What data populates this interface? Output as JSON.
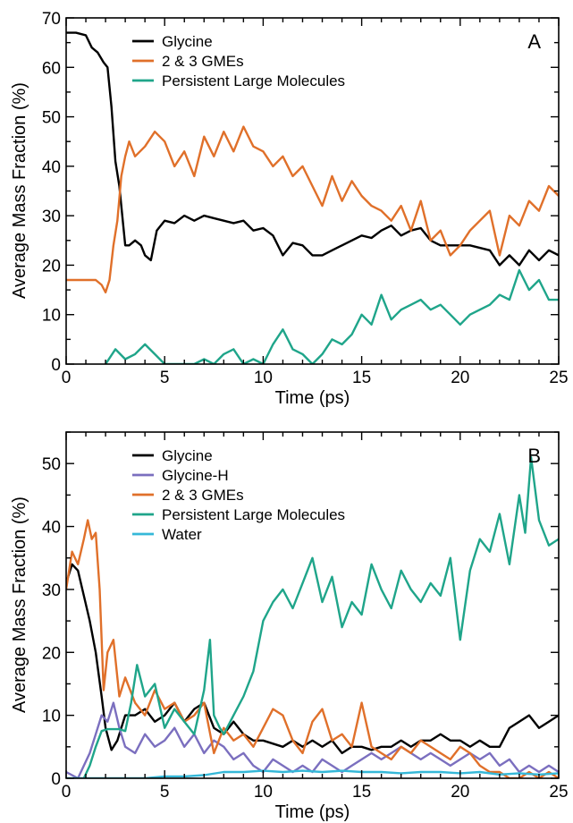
{
  "colors": {
    "glycine": "#000000",
    "glycine_h": "#7b6fbf",
    "gmes": "#e0702a",
    "persistent": "#1fa58a",
    "water": "#35b8d8"
  },
  "chart_data": [
    {
      "type": "line",
      "panel_label": "A",
      "xlabel": "Time (ps)",
      "ylabel": "Average Mass Fraction (%)",
      "xlim": [
        0,
        25
      ],
      "ylim": [
        0,
        70
      ],
      "xticks": [
        0,
        5,
        10,
        15,
        20,
        25
      ],
      "yticks": [
        0,
        10,
        20,
        30,
        40,
        50,
        60,
        70
      ],
      "grid": false,
      "legend_position": "top-left",
      "series": [
        {
          "name": "Glycine",
          "color": "#000000",
          "x": [
            0,
            0.5,
            1,
            1.3,
            1.6,
            1.9,
            2.1,
            2.3,
            2.5,
            2.7,
            2.9,
            3.0,
            3.2,
            3.5,
            3.8,
            4.0,
            4.3,
            4.6,
            5.0,
            5.5,
            6,
            6.5,
            7,
            7.5,
            8,
            8.5,
            9,
            9.5,
            10,
            10.5,
            11,
            11.5,
            12,
            12.5,
            13,
            13.5,
            14,
            14.5,
            15,
            15.5,
            16,
            16.5,
            17,
            17.5,
            18,
            18.5,
            19,
            19.5,
            20,
            20.5,
            21,
            21.5,
            22,
            22.5,
            23,
            23.5,
            24,
            24.5,
            25
          ],
          "values": [
            67,
            67,
            66.5,
            64,
            63,
            61,
            60,
            52,
            41,
            36,
            28,
            24,
            24,
            25,
            24,
            22,
            21,
            27,
            29,
            28.5,
            30,
            29,
            30,
            29.5,
            29,
            28.5,
            29,
            27,
            27.5,
            26,
            22,
            24.5,
            24,
            22,
            22,
            23,
            24,
            25,
            26,
            25.5,
            27,
            28,
            26,
            27,
            27.5,
            25,
            24,
            24,
            24,
            24,
            23.5,
            23,
            20,
            22,
            20,
            23,
            21,
            23,
            22
          ]
        },
        {
          "name": "2 & 3 GMEs",
          "color": "#e0702a",
          "x": [
            0,
            1,
            1.5,
            1.8,
            2.0,
            2.2,
            2.4,
            2.6,
            2.8,
            3.0,
            3.2,
            3.5,
            4.0,
            4.5,
            5.0,
            5.5,
            6,
            6.5,
            7,
            7.5,
            8,
            8.5,
            9,
            9.5,
            10,
            10.5,
            11,
            11.5,
            12,
            12.5,
            13,
            13.5,
            14,
            14.5,
            15,
            15.5,
            16,
            16.5,
            17,
            17.5,
            18,
            18.5,
            19,
            19.5,
            20,
            20.5,
            21,
            21.5,
            22,
            22.5,
            23,
            23.5,
            24,
            24.5,
            25
          ],
          "values": [
            17,
            17,
            17,
            16,
            14.5,
            17,
            24,
            29,
            38,
            42,
            45,
            42,
            44,
            47,
            45,
            40,
            43,
            38,
            46,
            42,
            47,
            43,
            48,
            44,
            43,
            40,
            42,
            38,
            40,
            36,
            32,
            38,
            33,
            37,
            34,
            32,
            31,
            29,
            32,
            27,
            33,
            25,
            27,
            22,
            24,
            27,
            29,
            31,
            22,
            30,
            28,
            33,
            31,
            36,
            34
          ]
        },
        {
          "name": "Persistent Large Molecules",
          "color": "#1fa58a",
          "x": [
            2.0,
            2.5,
            3.0,
            3.5,
            4.0,
            4.5,
            5.0,
            5.5,
            6,
            6.5,
            7,
            7.5,
            8,
            8.5,
            9,
            9.5,
            10,
            10.5,
            11,
            11.5,
            12,
            12.5,
            13,
            13.5,
            14,
            14.5,
            15,
            15.5,
            16,
            16.5,
            17,
            17.5,
            18,
            18.5,
            19,
            19.5,
            20,
            20.5,
            21,
            21.5,
            22,
            22.5,
            23,
            23.5,
            24,
            24.5,
            25
          ],
          "values": [
            0,
            3,
            1,
            2,
            4,
            2,
            0,
            0,
            0,
            0,
            1,
            0,
            2,
            3,
            0,
            1,
            0,
            4,
            7,
            3,
            2,
            0,
            2,
            5,
            4,
            6,
            10,
            8,
            14,
            9,
            11,
            12,
            13,
            11,
            12,
            10,
            8,
            10,
            11,
            12,
            14,
            13,
            19,
            15,
            17,
            13,
            13
          ]
        }
      ]
    },
    {
      "type": "line",
      "panel_label": "B",
      "xlabel": "Time (ps)",
      "ylabel": "Average Mass Fraction (%)",
      "xlim": [
        0,
        25
      ],
      "ylim": [
        0,
        55
      ],
      "xticks": [
        0,
        5,
        10,
        15,
        20,
        25
      ],
      "yticks": [
        0,
        10,
        20,
        30,
        40,
        50
      ],
      "grid": false,
      "legend_position": "top-left",
      "series": [
        {
          "name": "Glycine",
          "color": "#000000",
          "x": [
            0,
            0.3,
            0.6,
            0.9,
            1.2,
            1.5,
            1.8,
            2.0,
            2.3,
            2.6,
            3.0,
            3.5,
            4,
            4.5,
            5,
            5.5,
            6,
            6.5,
            7,
            7.5,
            8,
            8.5,
            9,
            9.5,
            10,
            10.5,
            11,
            11.5,
            12,
            12.5,
            13,
            13.5,
            14,
            14.5,
            15,
            15.5,
            16,
            16.5,
            17,
            17.5,
            18,
            18.5,
            19,
            19.5,
            20,
            20.5,
            21,
            21.5,
            22,
            22.5,
            23,
            23.5,
            24,
            24.5,
            25
          ],
          "values": [
            31,
            34,
            33,
            29,
            25,
            20,
            13,
            8,
            4.5,
            6,
            10,
            10,
            11,
            9,
            10,
            12,
            9,
            11,
            12,
            8,
            7,
            9,
            7,
            6,
            6,
            5.5,
            5,
            6,
            5,
            6,
            5,
            6,
            4,
            5,
            5,
            4.5,
            5,
            5,
            6,
            5,
            6,
            6,
            7,
            6,
            6,
            5,
            6,
            5,
            5,
            8,
            9,
            10,
            8,
            9,
            10
          ]
        },
        {
          "name": "Glycine-H",
          "color": "#7b6fbf",
          "x": [
            0,
            0.3,
            0.6,
            0.9,
            1.2,
            1.5,
            1.8,
            2.1,
            2.4,
            2.7,
            3.0,
            3.5,
            4,
            4.5,
            5,
            5.5,
            6,
            6.5,
            7,
            7.5,
            8,
            8.5,
            9,
            9.5,
            10,
            10.5,
            11,
            11.5,
            12,
            12.5,
            13,
            13.5,
            14,
            14.5,
            15,
            15.5,
            16,
            16.5,
            17,
            17.5,
            18,
            18.5,
            19,
            19.5,
            20,
            20.5,
            21,
            21.5,
            22,
            22.5,
            23,
            23.5,
            24,
            24.5,
            25
          ],
          "values": [
            1,
            0.5,
            0,
            2,
            4,
            7,
            10,
            9,
            12,
            8,
            5,
            4,
            7,
            5,
            6,
            8,
            5,
            7,
            4,
            6,
            5,
            3,
            4,
            2,
            1,
            3,
            2,
            1,
            2,
            1,
            3,
            2,
            1,
            2,
            3,
            4,
            3,
            4,
            5,
            4,
            3,
            4,
            3,
            2,
            3,
            4,
            3,
            4,
            2,
            3,
            1,
            2,
            1,
            2,
            1
          ]
        },
        {
          "name": "2 & 3 GMEs",
          "color": "#e0702a",
          "x": [
            0,
            0.3,
            0.6,
            0.9,
            1.1,
            1.3,
            1.5,
            1.7,
            1.9,
            2.1,
            2.4,
            2.7,
            3.0,
            3.5,
            4,
            4.5,
            5,
            5.5,
            6,
            6.5,
            7,
            7.5,
            8,
            8.5,
            9,
            9.5,
            10,
            10.5,
            11,
            11.5,
            12,
            12.5,
            13,
            13.5,
            14,
            14.5,
            15,
            15.5,
            16,
            16.5,
            17,
            17.5,
            18,
            18.5,
            19,
            19.5,
            20,
            20.5,
            21,
            21.5,
            22,
            22.5,
            23,
            23.5,
            24,
            24.5,
            25
          ],
          "values": [
            30,
            36,
            34,
            38,
            41,
            38,
            39,
            30,
            14,
            20,
            22,
            13,
            16,
            12,
            10,
            14,
            11,
            12,
            9,
            10,
            12,
            4,
            8,
            6,
            7,
            5,
            8,
            11,
            10,
            6,
            4,
            9,
            11,
            6,
            7,
            5,
            12,
            5,
            4,
            3,
            5,
            4,
            6,
            5,
            4,
            3,
            5,
            4,
            2,
            1,
            1,
            0,
            0,
            1,
            0,
            1,
            0
          ]
        },
        {
          "name": "Persistent Large Molecules",
          "color": "#1fa58a",
          "x": [
            0.9,
            1.2,
            1.5,
            1.8,
            2.1,
            2.4,
            2.7,
            3.0,
            3.3,
            3.6,
            4.0,
            4.5,
            5,
            5.5,
            6,
            6.5,
            7,
            7.3,
            7.5,
            7.8,
            8,
            8.5,
            9,
            9.5,
            10,
            10.5,
            11,
            11.5,
            12,
            12.5,
            13,
            13.5,
            14,
            14.5,
            15,
            15.5,
            16,
            16.5,
            17,
            17.5,
            18,
            18.5,
            19,
            19.5,
            20,
            20.5,
            21,
            21.5,
            22,
            22.5,
            23,
            23.3,
            23.6,
            24,
            24.5,
            25
          ],
          "values": [
            0,
            2,
            5,
            7.5,
            7.8,
            7.8,
            7.8,
            7.5,
            12,
            18,
            13,
            15,
            8,
            11,
            9,
            7,
            14,
            22,
            10,
            8,
            7,
            10,
            13,
            17,
            25,
            28,
            30,
            27,
            31,
            35,
            28,
            32,
            24,
            28,
            26,
            34,
            30,
            27,
            33,
            30,
            28,
            31,
            29,
            35,
            22,
            33,
            38,
            36,
            42,
            34,
            45,
            39,
            51,
            41,
            37,
            38
          ]
        },
        {
          "name": "Water",
          "color": "#35b8d8",
          "x": [
            0,
            2,
            4,
            5,
            6,
            7,
            8,
            9,
            10,
            11,
            12,
            13,
            14,
            15,
            16,
            17,
            18,
            19,
            20,
            21,
            22,
            23,
            24,
            25
          ],
          "values": [
            0,
            0,
            0,
            0.3,
            0.3,
            0.5,
            1,
            1,
            1.2,
            1,
            1.2,
            1,
            1.2,
            1,
            1,
            0.8,
            1,
            1,
            0.8,
            1,
            0.6,
            0.8,
            0.6,
            0.8
          ]
        }
      ]
    }
  ]
}
